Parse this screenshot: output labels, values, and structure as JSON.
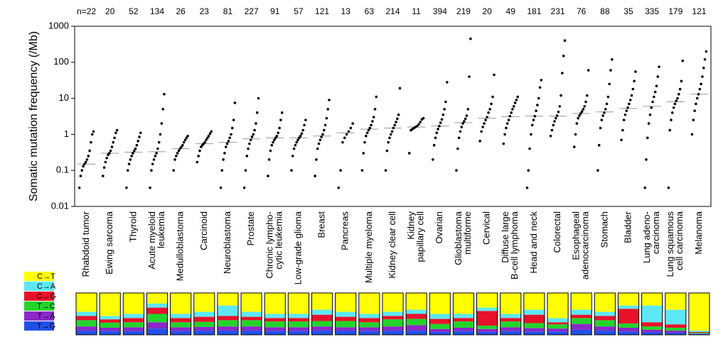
{
  "chart_data": {
    "type": "strip",
    "y_label": "Somatic mutation frequency (/Mb)",
    "log_scale": true,
    "ylim": [
      0.01,
      1000
    ],
    "yticks": [
      1000,
      100,
      10,
      1,
      0.1,
      0.01
    ],
    "categories": [
      [
        "Rhabdoid tumor"
      ],
      [
        "Ewing sarcoma"
      ],
      [
        "Thyroid"
      ],
      [
        "Acute myeloid",
        "leukemia"
      ],
      [
        "Medulloblastoma"
      ],
      [
        "Carcinoid"
      ],
      [
        "Neuroblastoma"
      ],
      [
        "Prostate"
      ],
      [
        "Chronic lympho-",
        "cytic leukemia"
      ],
      [
        "Low-grade glioma"
      ],
      [
        "Breast"
      ],
      [
        "Pancreas"
      ],
      [
        "Multiple myeloma"
      ],
      [
        "Kidney clear cell"
      ],
      [
        "Kidney",
        "papillary cell"
      ],
      [
        "Ovarian"
      ],
      [
        "Glioblastoma",
        "multiforme"
      ],
      [
        "Cervical"
      ],
      [
        "Diffuse large",
        "B-cell lymphoma"
      ],
      [
        "Head and neck"
      ],
      [
        "Colorectal"
      ],
      [
        "Esophageal",
        "adenocarcinoma"
      ],
      [
        "Stomach"
      ],
      [
        "Bladder"
      ],
      [
        "Lung adeno-",
        "carcinoma"
      ],
      [
        "Lung squamous",
        "cell carcinoma"
      ],
      [
        "Melanoma"
      ]
    ],
    "sample_counts": [
      {
        "value": 22,
        "label": "n=22"
      },
      20,
      52,
      134,
      26,
      23,
      81,
      227,
      91,
      57,
      121,
      13,
      63,
      214,
      11,
      394,
      219,
      20,
      49,
      181,
      231,
      76,
      88,
      35,
      335,
      179,
      121
    ],
    "point_color": "#000000",
    "median_color": "#999999",
    "values": [
      [
        0.033,
        0.07,
        0.1,
        0.13,
        0.15,
        0.17,
        0.2,
        0.25,
        0.35,
        0.6,
        1.0,
        1.2
      ],
      [
        0.07,
        0.12,
        0.17,
        0.22,
        0.27,
        0.3,
        0.35,
        0.45,
        0.6,
        0.8,
        1.1,
        1.3
      ],
      [
        0.033,
        0.1,
        0.15,
        0.2,
        0.25,
        0.3,
        0.35,
        0.4,
        0.5,
        0.65,
        0.85,
        1.1
      ],
      [
        0.033,
        0.1,
        0.15,
        0.2,
        0.25,
        0.3,
        0.4,
        0.6,
        1,
        2,
        5,
        13
      ],
      [
        0.1,
        0.2,
        0.25,
        0.3,
        0.35,
        0.4,
        0.45,
        0.5,
        0.6,
        0.7,
        0.8,
        0.9
      ],
      [
        0.17,
        0.25,
        0.35,
        0.45,
        0.5,
        0.55,
        0.6,
        0.7,
        0.8,
        0.9,
        1.05,
        1.2
      ],
      [
        0.033,
        0.1,
        0.2,
        0.3,
        0.45,
        0.55,
        0.65,
        0.8,
        1,
        1.5,
        2.5,
        7.5
      ],
      [
        0.033,
        0.1,
        0.25,
        0.4,
        0.55,
        0.7,
        0.85,
        1,
        1.3,
        2,
        4,
        10
      ],
      [
        0.07,
        0.2,
        0.35,
        0.5,
        0.6,
        0.7,
        0.8,
        0.9,
        1.1,
        1.5,
        2.5,
        4
      ],
      [
        0.1,
        0.25,
        0.4,
        0.5,
        0.6,
        0.7,
        0.8,
        0.9,
        1.05,
        1.3,
        1.8,
        2.5
      ],
      [
        0.07,
        0.2,
        0.4,
        0.55,
        0.7,
        0.85,
        1,
        1.3,
        1.8,
        2.8,
        5,
        9
      ],
      [
        0.033,
        0.1,
        0.6,
        0.8,
        1,
        1.2,
        1.5,
        2
      ],
      [
        0.1,
        0.3,
        0.6,
        0.9,
        1.1,
        1.3,
        1.5,
        1.8,
        2.3,
        3,
        5,
        11
      ],
      [
        0.1,
        0.35,
        0.6,
        0.8,
        1,
        1.2,
        1.5,
        1.8,
        2.2,
        2.7,
        3.5,
        19
      ],
      [
        0.3,
        1.3,
        1.4,
        1.5,
        1.6,
        1.7,
        1.9,
        2.2,
        2.6,
        2.8
      ],
      [
        0.2,
        0.5,
        0.8,
        1.1,
        1.4,
        1.7,
        2.1,
        2.6,
        3.5,
        5,
        8,
        28
      ],
      [
        0.1,
        0.4,
        0.8,
        1.2,
        1.6,
        2,
        2.3,
        2.7,
        3.3,
        5,
        40,
        450
      ],
      [
        0.65,
        1.2,
        1.6,
        2,
        2.5,
        3,
        4,
        5,
        7,
        11,
        45
      ],
      [
        0.55,
        1,
        1.5,
        2,
        2.5,
        3.2,
        4,
        5,
        6,
        7.5,
        9,
        11
      ],
      [
        0.033,
        0.1,
        0.4,
        1,
        1.8,
        2.5,
        3.2,
        4.5,
        6.5,
        10,
        20,
        32
      ],
      [
        0.9,
        1.3,
        1.8,
        2.3,
        2.8,
        3.3,
        4.2,
        6,
        12,
        50,
        150,
        400
      ],
      [
        0.45,
        1,
        2,
        2.8,
        3.3,
        3.8,
        4.3,
        5,
        6,
        8,
        12,
        60
      ],
      [
        0.1,
        0.5,
        1.5,
        2.5,
        3.3,
        4,
        5,
        7,
        11,
        25,
        60,
        120
      ],
      [
        0.7,
        1.3,
        2.5,
        3.5,
        4.5,
        5.5,
        7,
        9,
        12,
        18,
        30,
        55
      ],
      [
        0.033,
        0.2,
        0.8,
        2,
        3.5,
        5.5,
        8,
        11,
        15,
        22,
        40,
        75
      ],
      [
        0.033,
        1.3,
        2.5,
        4,
        5.5,
        7,
        8.5,
        10,
        13,
        18,
        30,
        110
      ],
      [
        1,
        2.5,
        4.5,
        7,
        10,
        13,
        18,
        25,
        40,
        70,
        120,
        200
      ]
    ],
    "medians": [
      0.15,
      0.3,
      0.32,
      0.33,
      0.4,
      0.55,
      0.6,
      0.75,
      0.8,
      0.8,
      0.9,
      1.1,
      1.4,
      1.5,
      1.6,
      1.7,
      2.1,
      2.8,
      3.1,
      3.2,
      3.2,
      3.8,
      4.2,
      5.2,
      6,
      8,
      13
    ],
    "signature_series": [
      {
        "name": "C→T",
        "color": "#ffff00",
        "values": [
          45,
          55,
          50,
          25,
          50,
          45,
          30,
          45,
          50,
          50,
          40,
          45,
          50,
          45,
          40,
          50,
          50,
          35,
          50,
          40,
          60,
          40,
          45,
          30,
          30,
          40,
          90
        ]
      },
      {
        "name": "C→A",
        "color": "#5ee8f5",
        "values": [
          10,
          8,
          10,
          10,
          10,
          12,
          25,
          12,
          10,
          10,
          12,
          12,
          10,
          10,
          10,
          12,
          10,
          8,
          10,
          12,
          10,
          12,
          10,
          8,
          40,
          35,
          3
        ]
      },
      {
        "name": "C→G",
        "color": "#e8102a",
        "values": [
          10,
          8,
          10,
          15,
          10,
          12,
          10,
          8,
          8,
          8,
          15,
          10,
          10,
          8,
          12,
          12,
          8,
          35,
          8,
          20,
          5,
          8,
          10,
          35,
          10,
          8,
          2
        ]
      },
      {
        "name": "T→C",
        "color": "#22d42c",
        "values": [
          15,
          12,
          12,
          20,
          12,
          12,
          15,
          15,
          14,
          14,
          13,
          15,
          12,
          17,
          15,
          12,
          15,
          8,
          14,
          12,
          10,
          14,
          15,
          10,
          8,
          7,
          2
        ]
      },
      {
        "name": "T→A",
        "color": "#8c28c8",
        "values": [
          10,
          8,
          9,
          15,
          9,
          9,
          10,
          10,
          9,
          9,
          10,
          8,
          9,
          10,
          13,
          7,
          8,
          7,
          9,
          8,
          7,
          14,
          10,
          9,
          6,
          5,
          1
        ]
      },
      {
        "name": "T→G",
        "color": "#2050e8",
        "values": [
          10,
          9,
          9,
          15,
          9,
          10,
          10,
          10,
          9,
          9,
          10,
          10,
          9,
          10,
          10,
          7,
          9,
          7,
          9,
          8,
          8,
          12,
          10,
          8,
          6,
          5,
          2
        ]
      }
    ]
  }
}
